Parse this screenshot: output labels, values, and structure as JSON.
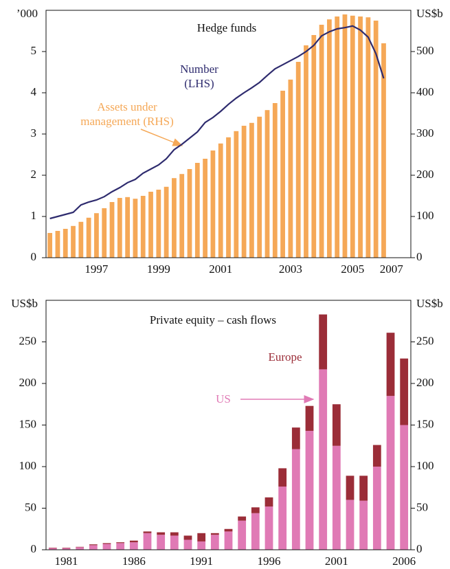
{
  "chart_data": [
    {
      "type": "combo",
      "title": "Hedge funds",
      "ylabel": "’000",
      "y2label": "US$b",
      "categories": [
        null,
        null,
        null,
        null,
        null,
        null,
        "1997",
        null,
        null,
        null,
        null,
        null,
        null,
        null,
        "1999",
        null,
        null,
        null,
        null,
        null,
        null,
        null,
        "2001",
        null,
        null,
        null,
        null,
        null,
        null,
        null,
        null,
        "2003",
        null,
        null,
        null,
        null,
        null,
        null,
        null,
        "2005",
        null,
        null,
        null,
        null,
        "2007",
        null,
        null
      ],
      "series": [
        {
          "name": "Assets under management (RHS)",
          "type": "bar",
          "axis": "y2",
          "color": "#f5a857",
          "values": [
            60,
            65,
            70,
            77,
            87,
            97,
            108,
            120,
            135,
            145,
            147,
            143,
            150,
            160,
            165,
            172,
            193,
            203,
            215,
            230,
            240,
            260,
            277,
            292,
            307,
            320,
            327,
            342,
            358,
            375,
            405,
            432,
            475,
            515,
            540,
            565,
            578,
            585,
            590,
            587,
            585,
            583,
            575,
            520,
            null,
            null,
            null
          ]
        },
        {
          "name": "Number (LHS)",
          "type": "line",
          "color": "#2e2b6e",
          "values": [
            0.95,
            1.0,
            1.05,
            1.1,
            1.28,
            1.35,
            1.4,
            1.48,
            1.6,
            1.7,
            1.82,
            1.9,
            2.05,
            2.15,
            2.25,
            2.4,
            2.62,
            2.75,
            2.9,
            3.05,
            3.28,
            3.4,
            3.55,
            3.72,
            3.87,
            4.0,
            4.12,
            4.25,
            4.42,
            4.58,
            4.68,
            4.78,
            4.88,
            5.0,
            5.15,
            5.38,
            5.48,
            5.55,
            5.58,
            5.62,
            5.52,
            5.35,
            4.95,
            4.35,
            null,
            null,
            null
          ]
        }
      ],
      "ylim": [
        0,
        6
      ],
      "yticks": [
        0,
        1,
        2,
        3,
        4,
        5
      ],
      "y2lim": [
        0,
        600
      ],
      "y2ticks": [
        0,
        100,
        200,
        300,
        400,
        500
      ]
    },
    {
      "type": "stacked_bar",
      "title": "Private equity – cash flows",
      "ylabel": "US$b",
      "y2label": "US$b",
      "categories": [
        null,
        "1981",
        null,
        null,
        null,
        null,
        "1986",
        null,
        null,
        null,
        null,
        "1991",
        null,
        null,
        null,
        null,
        "1996",
        null,
        null,
        null,
        null,
        "2001",
        null,
        null,
        null,
        null,
        "2006"
      ],
      "series": [
        {
          "name": "US",
          "color": "#e07ab5",
          "values": [
            2,
            2,
            3,
            5.5,
            7,
            8,
            9,
            20,
            18,
            17,
            12,
            10,
            18,
            22,
            35,
            44,
            52,
            76,
            121,
            143,
            217,
            125,
            60,
            59,
            100,
            185,
            150
          ]
        },
        {
          "name": "Europe",
          "color": "#9b2d38",
          "values": [
            0.5,
            0.5,
            0.5,
            1,
            1,
            1,
            2,
            2,
            3,
            4,
            5,
            10,
            2,
            3,
            5,
            7,
            11,
            22,
            26,
            30,
            66,
            50,
            29,
            30,
            26,
            76,
            80
          ]
        }
      ],
      "ylim": [
        0,
        300
      ],
      "yticks": [
        0,
        50,
        100,
        150,
        200,
        250
      ],
      "y2lim": [
        0,
        300
      ],
      "y2ticks": [
        0,
        50,
        100,
        150,
        200,
        250
      ]
    }
  ]
}
